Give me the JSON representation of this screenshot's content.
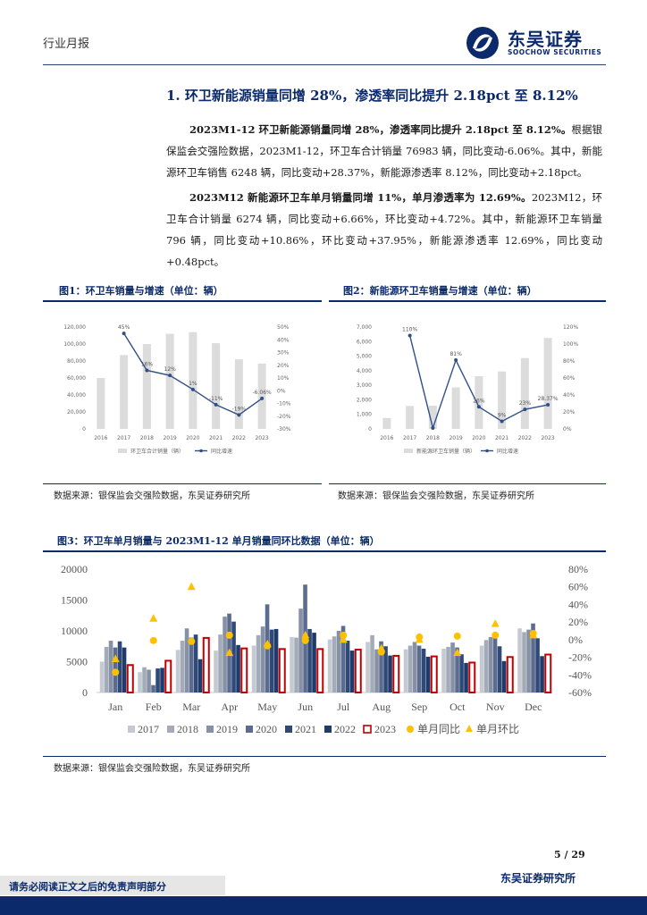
{
  "header": {
    "report_type": "行业月报",
    "logo_name": "东吴证券",
    "logo_sub": "SOOCHOW SECURITIES",
    "brand_color": "#0a2a6b"
  },
  "section_title": "1. 环卫新能源销量同增 28%，渗透率同比提升 2.18pct 至 8.12%",
  "para1": {
    "bold": "2023M1-12 环卫新能源销量同增 28%，渗透率同比提升 2.18pct 至 8.12%。",
    "text": "根据银保监会交强险数据，2023M1-12，环卫车合计销量 76983 辆，同比变动-6.06%。其中，新能源环卫车销售 6248 辆，同比变动+28.37%，新能源渗透率 8.12%，同比变动+2.18pct。"
  },
  "para2": {
    "bold": "2023M12 新能源环卫车单月销量同增 11%，单月渗透率为 12.69%。",
    "text": "2023M12，环卫车合计销量 6274 辆，同比变动+6.66%，环比变动+4.72%。其中，新能源环卫车销量 796 辆，同比变动+10.86%，环比变动+37.95%，新能源渗透率 12.69%，同比变动+0.48pct。"
  },
  "fig1": {
    "title": "图1：环卫车销量与增速（单位：辆）",
    "source": "数据来源：银保监会交强险数据，东吴证券研究所"
  },
  "fig2": {
    "title": "图2：新能源环卫车销量与增速（单位：辆）",
    "source": "数据来源：银保监会交强险数据，东吴证券研究所"
  },
  "fig3": {
    "title": "图3：环卫车单月销量与 2023M1-12 单月销量同环比数据（单位：辆）",
    "source": "数据来源：银保监会交强险数据，东吴证券研究所"
  },
  "chart_data": [
    {
      "type": "bar",
      "categories": [
        "2016",
        "2017",
        "2018",
        "2019",
        "2020",
        "2021",
        "2022",
        "2023"
      ],
      "series": [
        {
          "name": "环卫车合计销量（辆）",
          "values": [
            60000,
            87000,
            100000,
            112000,
            114000,
            101000,
            82000,
            77000
          ]
        },
        {
          "name": "同比增速",
          "values": [
            null,
            45,
            16,
            12,
            1,
            -11,
            -19,
            -6.06
          ]
        }
      ],
      "data_labels": [
        "",
        "45%",
        "16%",
        "12%",
        "1%",
        "-11%",
        "-19%",
        "-6.06%"
      ],
      "y_ticks": [
        "0",
        "20,000",
        "40,000",
        "60,000",
        "80,000",
        "100,000",
        "120,000"
      ],
      "y2_ticks": [
        "-30%",
        "-20%",
        "-10%",
        "0%",
        "10%",
        "20%",
        "30%",
        "40%",
        "50%"
      ],
      "ylim": [
        0,
        120000
      ],
      "y2lim": [
        -30,
        50
      ],
      "legend": [
        "环卫车合计销量（辆）",
        "同比增速"
      ]
    },
    {
      "type": "bar",
      "categories": [
        "2016",
        "2017",
        "2018",
        "2019",
        "2020",
        "2021",
        "2022",
        "2023"
      ],
      "series": [
        {
          "name": "新能源环卫车销量（辆）",
          "values": [
            750,
            1580,
            1600,
            2850,
            3620,
            3950,
            4870,
            6248
          ]
        },
        {
          "name": "同比增速",
          "values": [
            null,
            110,
            1,
            81,
            26,
            9,
            23,
            28.37
          ]
        }
      ],
      "data_labels": [
        "",
        "110%",
        "",
        "81%",
        "26%",
        "9%",
        "23%",
        "28.37%"
      ],
      "y_ticks": [
        "0",
        "1,000",
        "2,000",
        "3,000",
        "4,000",
        "5,000",
        "6,000",
        "7,000"
      ],
      "y2_ticks": [
        "0%",
        "20%",
        "40%",
        "60%",
        "80%",
        "100%",
        "120%"
      ],
      "ylim": [
        0,
        7000
      ],
      "y2lim": [
        0,
        120
      ],
      "legend": [
        "新能源环卫车销量（辆）",
        "同比增速"
      ]
    },
    {
      "type": "bar",
      "categories": [
        "Jan",
        "Feb",
        "Mar",
        "Apr",
        "May",
        "Jun",
        "Jul",
        "Aug",
        "Sep",
        "Oct",
        "Nov",
        "Dec"
      ],
      "series": [
        {
          "name": "2017",
          "values": [
            5000,
            3300,
            6900,
            6800,
            7600,
            9000,
            8600,
            8200,
            7000,
            7100,
            7600,
            10400
          ]
        },
        {
          "name": "2018",
          "values": [
            7400,
            4100,
            8400,
            9400,
            9300,
            8900,
            9100,
            9300,
            7600,
            7400,
            8500,
            9800
          ]
        },
        {
          "name": "2019",
          "values": [
            8400,
            3700,
            10400,
            12300,
            10700,
            13600,
            10000,
            7000,
            8200,
            8100,
            9000,
            10200
          ]
        },
        {
          "name": "2020",
          "values": [
            7300,
            1200,
            8900,
            12800,
            14300,
            17500,
            10800,
            8300,
            7600,
            7300,
            9300,
            11200
          ]
        },
        {
          "name": "2021",
          "values": [
            8300,
            3900,
            9400,
            11500,
            10200,
            10300,
            8400,
            7500,
            7100,
            6200,
            7500,
            8800
          ]
        },
        {
          "name": "2022",
          "values": [
            7300,
            4000,
            5400,
            7700,
            10300,
            9700,
            6800,
            6000,
            5800,
            4800,
            5100,
            5900
          ]
        },
        {
          "name": "2023",
          "values": [
            4600,
            5300,
            9000,
            7300,
            7200,
            7200,
            7100,
            6100,
            6000,
            5000,
            5900,
            6300
          ]
        },
        {
          "name": "单月同比",
          "values": [
            -37,
            -1,
            -2,
            5,
            -7,
            -1,
            5,
            -14,
            3,
            4,
            5,
            7
          ]
        },
        {
          "name": "单月环比",
          "values": [
            -22,
            24,
            60,
            -15,
            -5,
            5,
            0,
            -10,
            0,
            -15,
            18,
            5
          ]
        }
      ],
      "y_ticks": [
        "0",
        "5000",
        "10000",
        "15000",
        "20000"
      ],
      "y2_ticks": [
        "-60%",
        "-40%",
        "-20%",
        "0%",
        "20%",
        "40%",
        "60%",
        "80%"
      ],
      "ylim": [
        0,
        20000
      ],
      "y2lim": [
        -60,
        80
      ],
      "legend": [
        "2017",
        "2018",
        "2019",
        "2020",
        "2021",
        "2022",
        "2023",
        "单月同比",
        "单月环比"
      ]
    }
  ],
  "footer": {
    "page": "5 / 29",
    "org": "东吴证券研究所",
    "disclaimer": "请务必阅读正文之后的免责声明部分"
  }
}
